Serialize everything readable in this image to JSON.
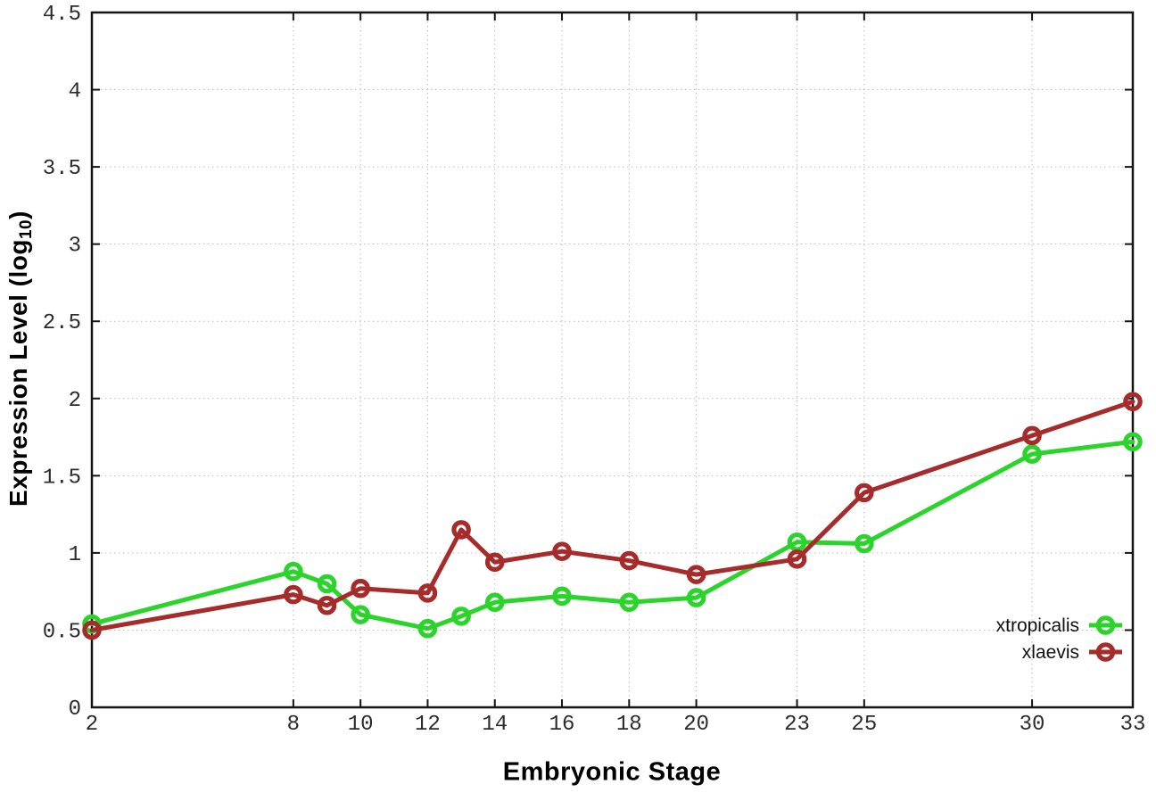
{
  "chart_data": {
    "type": "line",
    "title": "",
    "xlabel": "Embryonic Stage",
    "ylabel": "Expression Level (log10)",
    "ylabel_parts": {
      "prefix": "Expression Level (log",
      "sub": "10",
      "suffix": ")"
    },
    "x": [
      2,
      8,
      9,
      10,
      12,
      13,
      14,
      16,
      18,
      20,
      23,
      25,
      30,
      33
    ],
    "series": [
      {
        "name": "xtropicalis",
        "color": "#2bd42b",
        "values": [
          0.54,
          0.88,
          0.8,
          0.6,
          0.51,
          0.59,
          0.68,
          0.72,
          0.68,
          0.71,
          1.07,
          1.06,
          1.64,
          1.72
        ]
      },
      {
        "name": "xlaevis",
        "color": "#a62c2c",
        "values": [
          0.5,
          0.73,
          0.66,
          0.77,
          0.74,
          1.15,
          0.94,
          1.01,
          0.95,
          0.86,
          0.96,
          1.39,
          1.76,
          1.98
        ]
      }
    ],
    "xlim": [
      2,
      33
    ],
    "ylim": [
      0,
      4.5
    ],
    "x_ticks": [
      2,
      8,
      10,
      12,
      14,
      16,
      18,
      20,
      23,
      25,
      30,
      33
    ],
    "x_tick_labels": [
      "2",
      "8",
      "10",
      "12",
      "14",
      "16",
      "18",
      "20",
      "23",
      "25",
      "30",
      "33"
    ],
    "y_ticks": [
      0,
      0.5,
      1,
      1.5,
      2,
      2.5,
      3,
      3.5,
      4,
      4.5
    ],
    "y_tick_labels": [
      "0",
      "0.5",
      "1",
      "1.5",
      "2",
      "2.5",
      "3",
      "3.5",
      "4",
      "4.5"
    ],
    "grid": true,
    "legend_position": "bottom-right",
    "marker": "open-circle"
  },
  "colors": {
    "background": "#ffffff",
    "border": "#141414",
    "grid": "#bcbcbc",
    "tick_text": "#2b2b2b",
    "legend_text": "#111111"
  }
}
